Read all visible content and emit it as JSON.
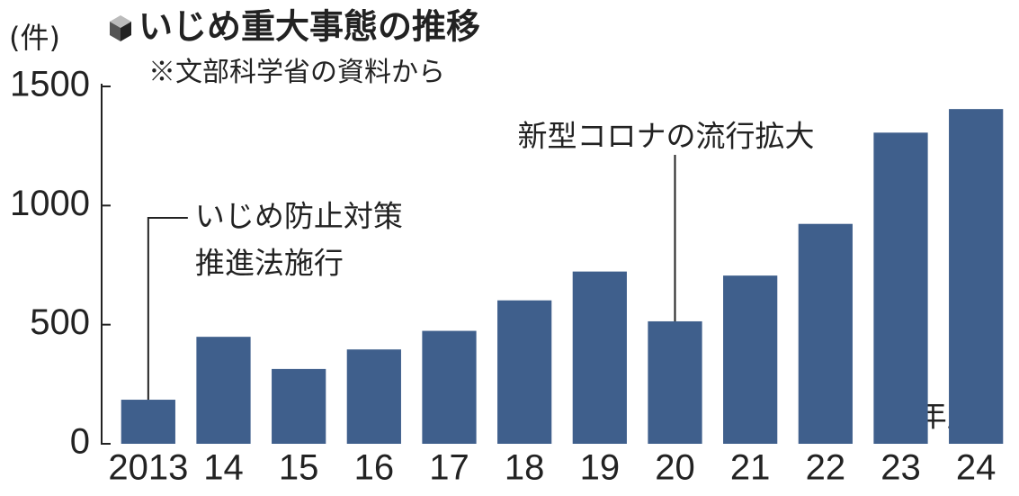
{
  "chart_data": {
    "type": "bar",
    "title": "いじめ重大事態の推移",
    "subtitle": "※文部科学省の資料から",
    "y_unit": "(件)",
    "x_unit": "(年度)",
    "categories": [
      "2013",
      "14",
      "15",
      "16",
      "17",
      "18",
      "19",
      "20",
      "21",
      "22",
      "23",
      "24"
    ],
    "values": [
      185,
      449,
      314,
      396,
      474,
      602,
      723,
      514,
      706,
      923,
      1306,
      1405
    ],
    "color": "#3f5f8c",
    "ylim": [
      0,
      1500
    ],
    "yticks": [
      0,
      500,
      1000,
      1500
    ],
    "grid": false,
    "annotations": [
      {
        "lines": [
          "いじめ防止対策",
          "推進法施行"
        ]
      },
      {
        "lines": [
          "新型コロナの流行拡大"
        ]
      }
    ]
  }
}
